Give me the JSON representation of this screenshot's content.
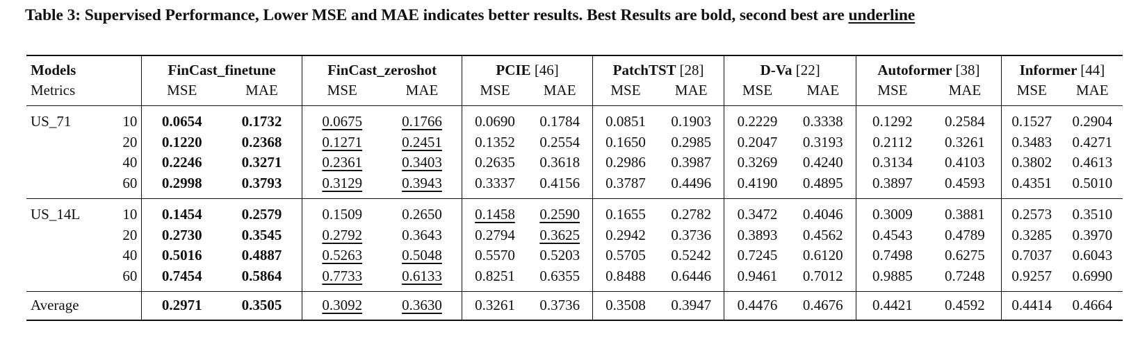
{
  "caption": {
    "text": "Table 3: Supervised Performance, Lower MSE and MAE indicates better results. Best Results are bold, second best are ",
    "underline_word": "underline"
  },
  "header": {
    "models_label": "Models",
    "metrics_label": "Metrics",
    "models": [
      {
        "name": "FinCast_finetune",
        "ref": ""
      },
      {
        "name": "FinCast_zeroshot",
        "ref": ""
      },
      {
        "name": "PCIE",
        "ref": "[46]"
      },
      {
        "name": "PatchTST",
        "ref": "[28]"
      },
      {
        "name": "D-Va",
        "ref": "[22]"
      },
      {
        "name": "Autoformer",
        "ref": "[38]"
      },
      {
        "name": "Informer",
        "ref": "[44]"
      }
    ],
    "metric_names": [
      "MSE",
      "MAE"
    ]
  },
  "groups": [
    {
      "dataset": "US_71",
      "rows": [
        {
          "horizon": "10",
          "values": [
            "0.0654",
            "0.1732",
            "0.0675",
            "0.1766",
            "0.0690",
            "0.1784",
            "0.0851",
            "0.1903",
            "0.2229",
            "0.3338",
            "0.1292",
            "0.2584",
            "0.1527",
            "0.2904"
          ]
        },
        {
          "horizon": "20",
          "values": [
            "0.1220",
            "0.2368",
            "0.1271",
            "0.2451",
            "0.1352",
            "0.2554",
            "0.1650",
            "0.2985",
            "0.2047",
            "0.3193",
            "0.2112",
            "0.3261",
            "0.3483",
            "0.4271"
          ]
        },
        {
          "horizon": "40",
          "values": [
            "0.2246",
            "0.3271",
            "0.2361",
            "0.3403",
            "0.2635",
            "0.3618",
            "0.2986",
            "0.3987",
            "0.3269",
            "0.4240",
            "0.3134",
            "0.4103",
            "0.3802",
            "0.4613"
          ]
        },
        {
          "horizon": "60",
          "values": [
            "0.2998",
            "0.3793",
            "0.3129",
            "0.3943",
            "0.3337",
            "0.4156",
            "0.3787",
            "0.4496",
            "0.4190",
            "0.4895",
            "0.3897",
            "0.4593",
            "0.4351",
            "0.5010"
          ]
        }
      ]
    },
    {
      "dataset": "US_14L",
      "rows": [
        {
          "horizon": "10",
          "values": [
            "0.1454",
            "0.2579",
            "0.1509",
            "0.2650",
            "0.1458",
            "0.2590",
            "0.1655",
            "0.2782",
            "0.3472",
            "0.4046",
            "0.3009",
            "0.3881",
            "0.2573",
            "0.3510"
          ]
        },
        {
          "horizon": "20",
          "values": [
            "0.2730",
            "0.3545",
            "0.2792",
            "0.3643",
            "0.2794",
            "0.3625",
            "0.2942",
            "0.3736",
            "0.3893",
            "0.4562",
            "0.4543",
            "0.4789",
            "0.3285",
            "0.3970"
          ]
        },
        {
          "horizon": "40",
          "values": [
            "0.5016",
            "0.4887",
            "0.5263",
            "0.5048",
            "0.5570",
            "0.5203",
            "0.5705",
            "0.5242",
            "0.7245",
            "0.6120",
            "0.7498",
            "0.6275",
            "0.7037",
            "0.6043"
          ]
        },
        {
          "horizon": "60",
          "values": [
            "0.7454",
            "0.5864",
            "0.7733",
            "0.6133",
            "0.8251",
            "0.6355",
            "0.8488",
            "0.6446",
            "0.9461",
            "0.7012",
            "0.9885",
            "0.7248",
            "0.9257",
            "0.6990"
          ]
        }
      ]
    }
  ],
  "average": {
    "label": "Average",
    "values": [
      "0.2971",
      "0.3505",
      "0.3092",
      "0.3630",
      "0.3261",
      "0.3736",
      "0.3508",
      "0.3947",
      "0.4476",
      "0.4676",
      "0.4421",
      "0.4592",
      "0.4414",
      "0.4664"
    ]
  },
  "emphasis": {
    "bold": [
      "0.0.0",
      "0.0.1",
      "0.1.0",
      "0.1.1",
      "0.2.0",
      "0.2.1",
      "0.3.0",
      "0.3.1",
      "1.0.0",
      "1.0.1",
      "1.1.0",
      "1.1.1",
      "1.2.0",
      "1.2.1",
      "1.3.0",
      "1.3.1",
      "avg.0",
      "avg.1"
    ],
    "underline": [
      "0.0.2",
      "0.0.3",
      "0.1.2",
      "0.1.3",
      "0.2.2",
      "0.2.3",
      "0.3.2",
      "0.3.3",
      "1.0.4",
      "1.0.5",
      "1.1.2",
      "1.1.5",
      "1.2.2",
      "1.2.3",
      "1.3.2",
      "1.3.3",
      "avg.2",
      "avg.3"
    ]
  }
}
